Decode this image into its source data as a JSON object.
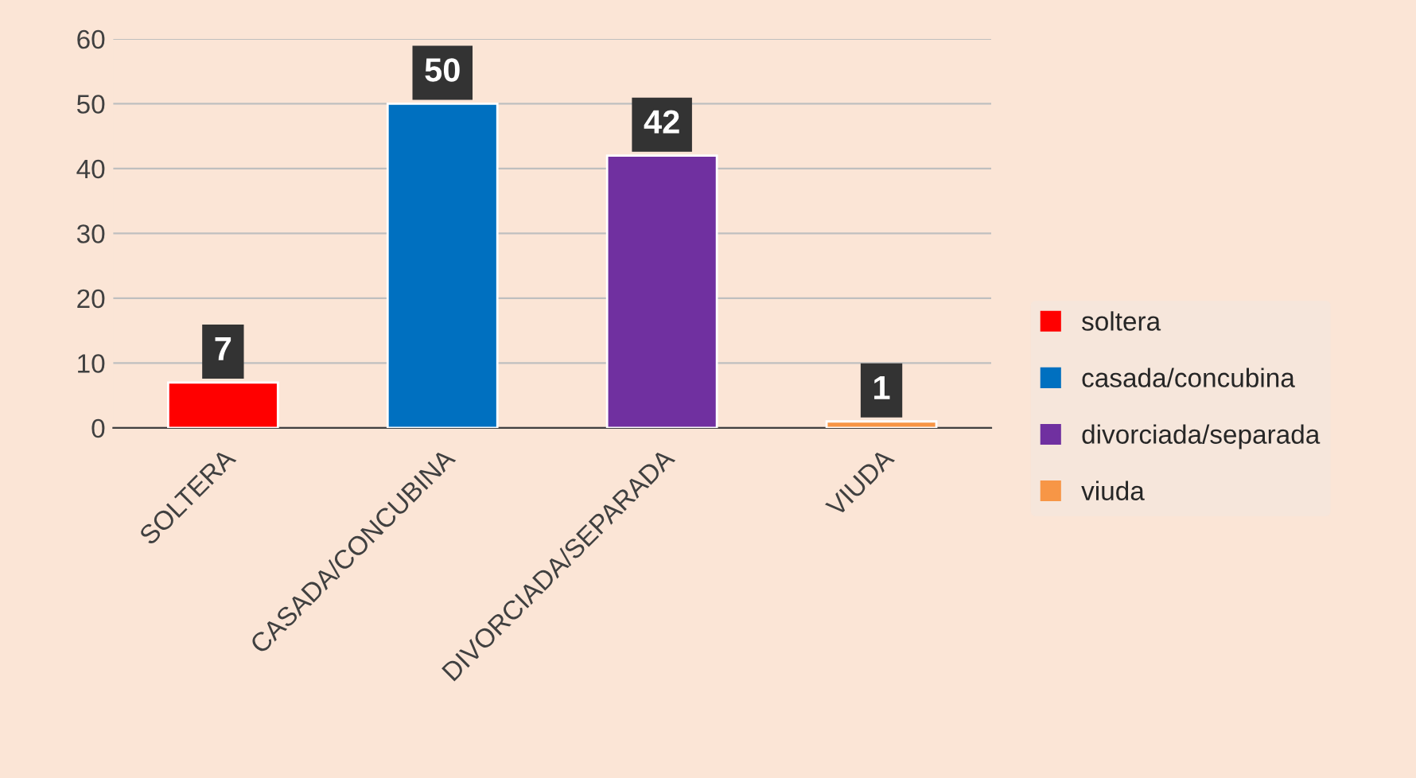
{
  "chart_data": {
    "type": "bar",
    "categories": [
      "SOLTERA",
      "CASADA/CONCUBINA",
      "DIVORCIADA/SEPARADA",
      "VIUDA"
    ],
    "series": [
      {
        "name": "soltera",
        "color": "#ff0000",
        "values": [
          7,
          null,
          null,
          null
        ]
      },
      {
        "name": "casada/concubina",
        "color": "#0070c0",
        "values": [
          null,
          50,
          null,
          null
        ]
      },
      {
        "name": "divorciada/separada",
        "color": "#7030a0",
        "values": [
          null,
          null,
          42,
          null
        ]
      },
      {
        "name": "viuda",
        "color": "#f79646",
        "values": [
          null,
          null,
          null,
          1
        ]
      }
    ],
    "ylim": [
      0,
      60
    ],
    "yticks": [
      0,
      10,
      20,
      30,
      40,
      50,
      60
    ],
    "grid": "y",
    "legend": "right",
    "data_labels": true
  }
}
